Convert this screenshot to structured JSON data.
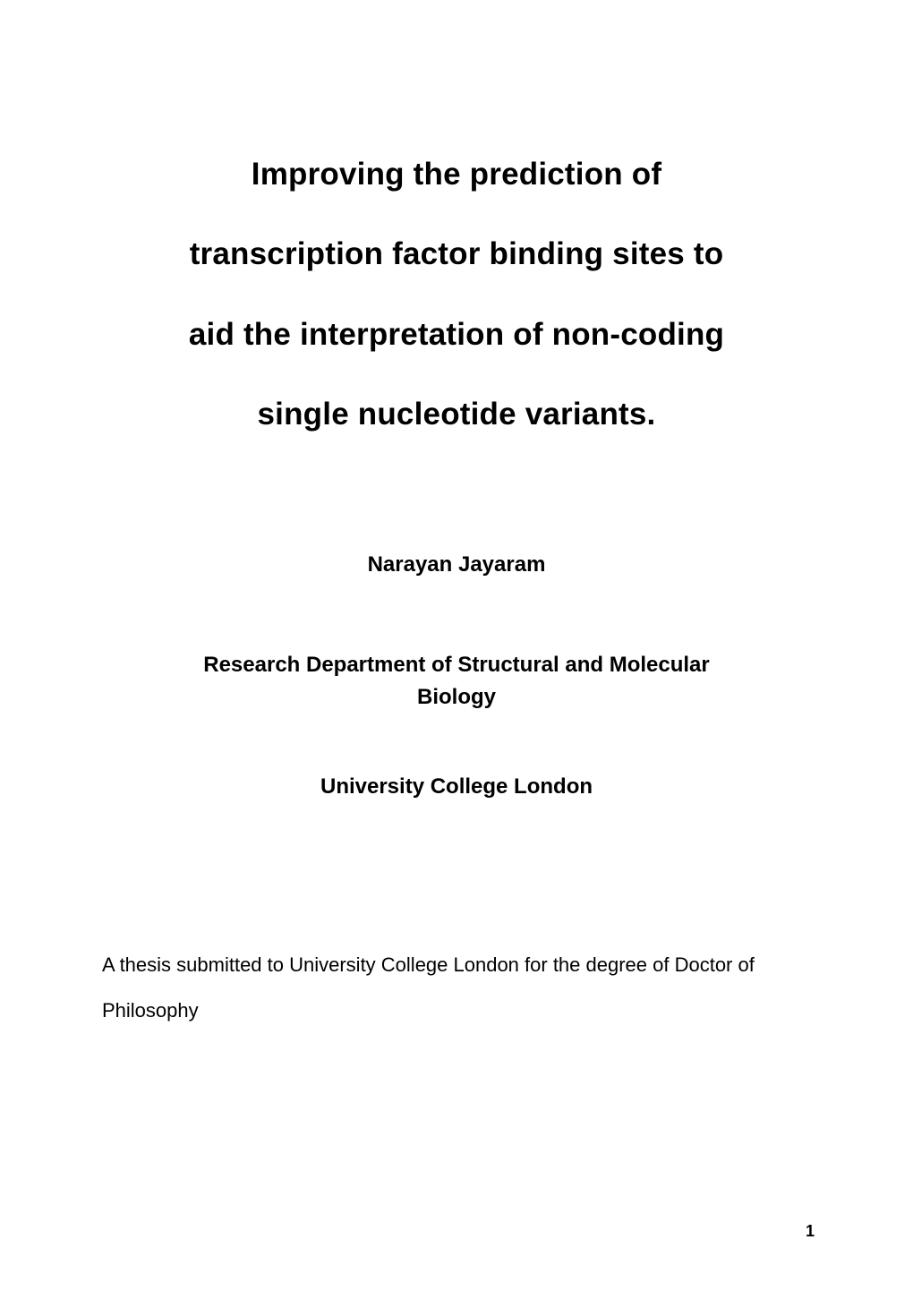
{
  "colors": {
    "background": "#ffffff",
    "text": "#000000"
  },
  "typography": {
    "font_family": "Arial, Helvetica, sans-serif",
    "title_fontsize_pt": 26,
    "title_weight": "bold",
    "author_fontsize_pt": 18,
    "author_weight": "bold",
    "subheading_fontsize_pt": 18,
    "subheading_weight": "bold",
    "body_fontsize_pt": 16,
    "body_weight": "normal",
    "page_number_fontsize_pt": 14,
    "page_number_weight": "bold"
  },
  "title": {
    "line1": "Improving the prediction of",
    "line2": "transcription factor binding sites to",
    "line3": "aid the interpretation of non-coding",
    "line4": "single nucleotide variants."
  },
  "author": "Narayan Jayaram",
  "department": {
    "line1": "Research Department of Structural and Molecular",
    "line2": "Biology"
  },
  "university": "University College London",
  "submission": "A thesis submitted to University College London for the degree of Doctor of Philosophy",
  "page_number": "1"
}
